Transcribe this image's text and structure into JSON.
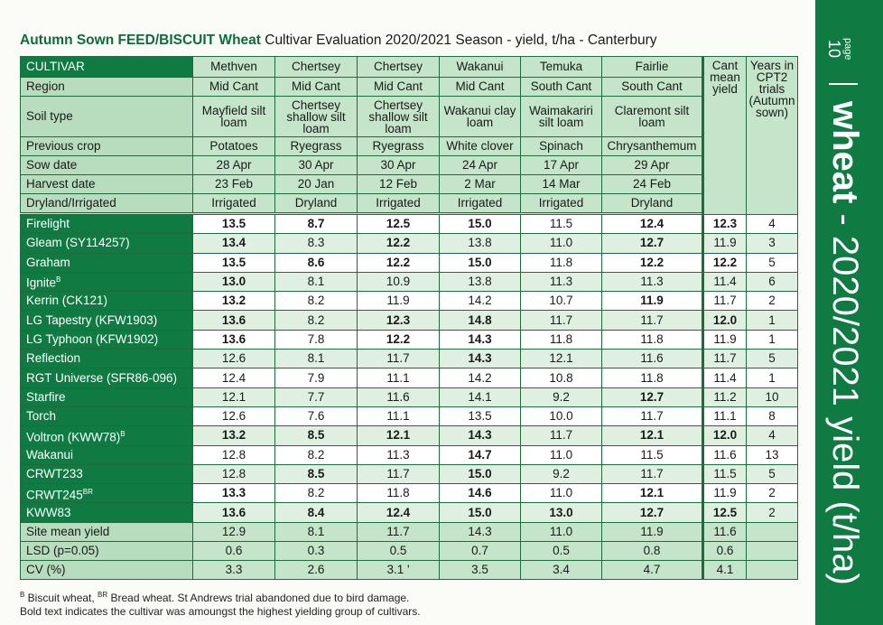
{
  "title": {
    "bold": "Autumn Sown FEED/BISCUIT Wheat",
    "rest": " Cultivar Evaluation 2020/2021 Season - yield, t/ha - Canterbury"
  },
  "header": {
    "cultivar_label": "CULTIVAR",
    "cant_mean_label": "Cant mean yield",
    "years_label": "Years in CPT2 trials (Autumn sown)",
    "rows": [
      {
        "label": "Region",
        "values": [
          "Mid Cant",
          "Mid Cant",
          "Mid Cant",
          "Mid Cant",
          "South Cant",
          "South Cant"
        ]
      },
      {
        "label": "Soil type",
        "values": [
          "Mayfield silt loam",
          "Chertsey shallow silt loam",
          "Chertsey shallow silt loam",
          "Wakanui clay loam",
          "Waimakariri silt loam",
          "Claremont silt loam"
        ]
      },
      {
        "label": "Previous crop",
        "values": [
          "Potatoes",
          "Ryegrass",
          "Ryegrass",
          "White clover",
          "Spinach",
          "Chrysanthemum"
        ]
      },
      {
        "label": "Sow date",
        "values": [
          "28 Apr",
          "30 Apr",
          "30 Apr",
          "24 Apr",
          "17 Apr",
          "29 Apr"
        ]
      },
      {
        "label": "Harvest date",
        "values": [
          "23 Feb",
          "20 Jan",
          "12 Feb",
          "2 Mar",
          "14 Mar",
          "24 Feb"
        ]
      },
      {
        "label": "Dryland/Irrigated",
        "values": [
          "Irrigated",
          "Dryland",
          "Irrigated",
          "Irrigated",
          "Irrigated",
          "Dryland"
        ]
      }
    ],
    "sites": [
      "Methven",
      "Chertsey",
      "Chertsey",
      "Wakanui",
      "Temuka",
      "Fairlie"
    ]
  },
  "cultivars": [
    {
      "name": "Firelight",
      "sup": "",
      "values": [
        "13.5",
        "8.7",
        "12.5",
        "15.0",
        "11.5",
        "12.4"
      ],
      "bold": [
        1,
        1,
        1,
        1,
        0,
        1
      ],
      "mean": "12.3",
      "mean_bold": 1,
      "years": "4"
    },
    {
      "name": "Gleam (SY114257)",
      "sup": "",
      "values": [
        "13.4",
        "8.3",
        "12.2",
        "13.8",
        "11.0",
        "12.7"
      ],
      "bold": [
        1,
        0,
        1,
        0,
        0,
        1
      ],
      "mean": "11.9",
      "mean_bold": 0,
      "years": "3"
    },
    {
      "name": "Graham",
      "sup": "",
      "values": [
        "13.5",
        "8.6",
        "12.2",
        "15.0",
        "11.8",
        "12.2"
      ],
      "bold": [
        1,
        1,
        1,
        1,
        0,
        1
      ],
      "mean": "12.2",
      "mean_bold": 1,
      "years": "5"
    },
    {
      "name": "Ignite",
      "sup": "B",
      "values": [
        "13.0",
        "8.1",
        "10.9",
        "13.8",
        "11.3",
        "11.3"
      ],
      "bold": [
        1,
        0,
        0,
        0,
        0,
        0
      ],
      "mean": "11.4",
      "mean_bold": 0,
      "years": "6"
    },
    {
      "name": "Kerrin (CK121)",
      "sup": "",
      "values": [
        "13.2",
        "8.2",
        "11.9",
        "14.2",
        "10.7",
        "11.9"
      ],
      "bold": [
        1,
        0,
        0,
        0,
        0,
        1
      ],
      "mean": "11.7",
      "mean_bold": 0,
      "years": "2"
    },
    {
      "name": "LG Tapestry (KFW1903)",
      "sup": "",
      "values": [
        "13.6",
        "8.2",
        "12.3",
        "14.8",
        "11.7",
        "11.7"
      ],
      "bold": [
        1,
        0,
        1,
        1,
        0,
        0
      ],
      "mean": "12.0",
      "mean_bold": 1,
      "years": "1"
    },
    {
      "name": "LG Typhoon (KFW1902)",
      "sup": "",
      "values": [
        "13.6",
        "7.8",
        "12.2",
        "14.3",
        "11.8",
        "11.8"
      ],
      "bold": [
        1,
        0,
        1,
        1,
        0,
        0
      ],
      "mean": "11.9",
      "mean_bold": 0,
      "years": "1"
    },
    {
      "name": "Reflection",
      "sup": "",
      "values": [
        "12.6",
        "8.1",
        "11.7",
        "14.3",
        "12.1",
        "11.6"
      ],
      "bold": [
        0,
        0,
        0,
        1,
        0,
        0
      ],
      "mean": "11.7",
      "mean_bold": 0,
      "years": "5"
    },
    {
      "name": "RGT Universe (SFR86-096)",
      "sup": "",
      "values": [
        "12.4",
        "7.9",
        "11.1",
        "14.2",
        "10.8",
        "11.8"
      ],
      "bold": [
        0,
        0,
        0,
        0,
        0,
        0
      ],
      "mean": "11.4",
      "mean_bold": 0,
      "years": "1"
    },
    {
      "name": "Starfire",
      "sup": "",
      "values": [
        "12.1",
        "7.7",
        "11.6",
        "14.1",
        "9.2",
        "12.7"
      ],
      "bold": [
        0,
        0,
        0,
        0,
        0,
        1
      ],
      "mean": "11.2",
      "mean_bold": 0,
      "years": "10"
    },
    {
      "name": "Torch",
      "sup": "",
      "values": [
        "12.6",
        "7.6",
        "11.1",
        "13.5",
        "10.0",
        "11.7"
      ],
      "bold": [
        0,
        0,
        0,
        0,
        0,
        0
      ],
      "mean": "11.1",
      "mean_bold": 0,
      "years": "8"
    },
    {
      "name": "Voltron (KWW78)",
      "sup": "B",
      "values": [
        "13.2",
        "8.5",
        "12.1",
        "14.3",
        "11.7",
        "12.1"
      ],
      "bold": [
        1,
        1,
        1,
        1,
        0,
        1
      ],
      "mean": "12.0",
      "mean_bold": 1,
      "years": "4"
    },
    {
      "name": "Wakanui",
      "sup": "",
      "values": [
        "12.8",
        "8.2",
        "11.3",
        "14.7",
        "11.0",
        "11.5"
      ],
      "bold": [
        0,
        0,
        0,
        1,
        0,
        0
      ],
      "mean": "11.6",
      "mean_bold": 0,
      "years": "13"
    },
    {
      "name": "CRWT233",
      "sup": "",
      "values": [
        "12.8",
        "8.5",
        "11.7",
        "15.0",
        "9.2",
        "11.7"
      ],
      "bold": [
        0,
        1,
        0,
        1,
        0,
        0
      ],
      "mean": "11.5",
      "mean_bold": 0,
      "years": "5"
    },
    {
      "name": "CRWT245",
      "sup": "BR",
      "values": [
        "13.3",
        "8.2",
        "11.8",
        "14.6",
        "11.0",
        "12.1"
      ],
      "bold": [
        1,
        0,
        0,
        1,
        0,
        1
      ],
      "mean": "11.9",
      "mean_bold": 0,
      "years": "2"
    },
    {
      "name": "KWW83",
      "sup": "",
      "values": [
        "13.6",
        "8.4",
        "12.4",
        "15.0",
        "13.0",
        "12.7"
      ],
      "bold": [
        1,
        1,
        1,
        1,
        1,
        1
      ],
      "mean": "12.5",
      "mean_bold": 1,
      "years": "2"
    }
  ],
  "stats": [
    {
      "label": "Site mean yield",
      "values": [
        "12.9",
        "8.1",
        "11.7",
        "14.3",
        "11.0",
        "11.9"
      ],
      "mean": "11.6"
    },
    {
      "label": "LSD (p=0.05)",
      "values": [
        "0.6",
        "0.3",
        "0.5",
        "0.7",
        "0.5",
        "0.8"
      ],
      "mean": "0.6"
    },
    {
      "label": "CV (%)",
      "values": [
        "3.3",
        "2.6",
        "3.1 '",
        "3.5",
        "3.4",
        "4.7"
      ],
      "mean": "4.1"
    }
  ],
  "footnote": {
    "line1_sup_b": "B",
    "line1_a": " Biscuit wheat, ",
    "line1_sup_br": "BR",
    "line1_b": " Bread wheat. St Andrews trial abandoned due to bird damage.",
    "line2": "Bold text indicates the cultivar was amoungst the highest yielding group of cultivars."
  },
  "side_band": {
    "page_label": "page",
    "page_number": "10",
    "word": "wheat",
    "rest": " - 2020/2021 yield (t/ha)"
  },
  "colors": {
    "brand_green": "#0f7a42",
    "header_fill": "#c4e5c9",
    "alt_row": "#dff0e1"
  }
}
